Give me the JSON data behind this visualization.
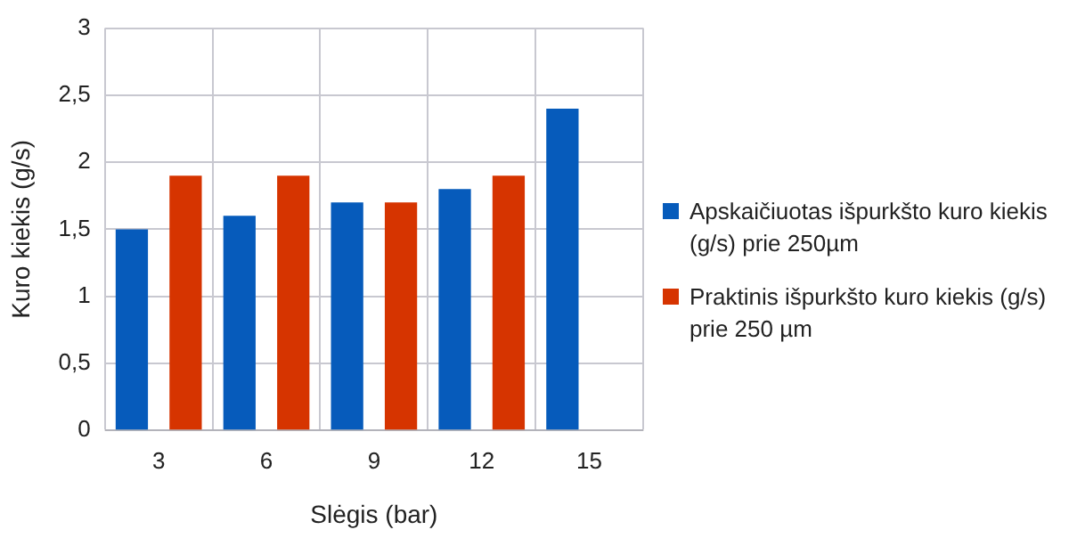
{
  "chart_data": {
    "type": "bar",
    "xlabel": "Slėgis (bar)",
    "ylabel": "Kuro kiekis (g/s)",
    "categories": [
      "3",
      "6",
      "9",
      "12",
      "15"
    ],
    "series": [
      {
        "name": "Apskaičiuotas išpurkšto kuro kiekis (g/s) prie 250µm",
        "color": "#065bbb",
        "values": [
          1.5,
          1.6,
          1.7,
          1.8,
          2.4
        ]
      },
      {
        "name": "Praktinis išpurkšto kuro kiekis (g/s) prie 250 µm",
        "color": "#d63400",
        "values": [
          1.9,
          1.9,
          1.7,
          1.9,
          null
        ]
      }
    ],
    "ylim": [
      0,
      3
    ],
    "yticks": [
      0,
      {
        "value": 0.5,
        "label": "0,5"
      },
      1,
      {
        "value": 1.5,
        "label": "1,5"
      },
      2,
      {
        "value": 2.5,
        "label": "2,5"
      },
      3
    ],
    "grid": true,
    "legend": "right"
  }
}
